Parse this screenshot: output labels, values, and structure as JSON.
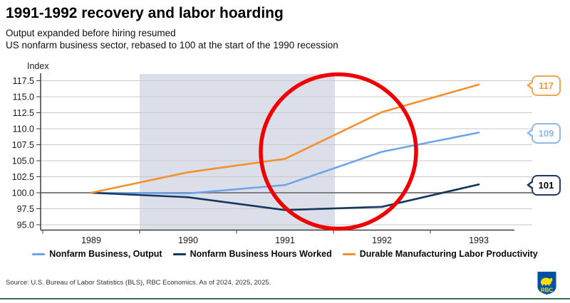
{
  "header": {
    "title": "1991-1992 recovery and labor hoarding",
    "subtitle_line1": "Output expanded before hiring resumed",
    "subtitle_line2": "US nonfarm business sector, rebased to 100 at the start of the 1990 recession"
  },
  "chart_data": {
    "type": "line",
    "title": "1991-1992 recovery and labor hoarding",
    "ylabel": "Index",
    "x": [
      1989,
      1990,
      1991,
      1992,
      1993
    ],
    "x_labels": [
      "1989",
      "1990",
      "1991",
      "1992",
      "1993"
    ],
    "ylim": [
      95,
      117.5
    ],
    "yticks": [
      "117.5",
      "115.0",
      "112.5",
      "110.0",
      "107.5",
      "105.0",
      "102.5",
      "100.0",
      "97.5",
      "95.0"
    ],
    "grid": true,
    "baseline_value": 100,
    "series": [
      {
        "name": "Nonfarm Business, Output",
        "color": "#6fa4e8",
        "values": [
          100,
          99.9,
          101.2,
          106.4,
          109.4
        ],
        "end_label": "109",
        "end_label_border_color": "#8fb9ee",
        "end_label_text_color": "#8fb9ee"
      },
      {
        "name": "Nonfarm Business Hours Worked",
        "color": "#17365d",
        "values": [
          100,
          99.3,
          97.3,
          97.8,
          101.3
        ],
        "end_label": "101",
        "end_label_border_color": "#1f3a63",
        "end_label_text_color": "#000000"
      },
      {
        "name": "Durable Manufacturing Labor Productivity",
        "color": "#f3912e",
        "values": [
          100,
          103.2,
          105.3,
          112.6,
          116.9
        ],
        "end_label": "117",
        "end_label_border_color": "#f5a54f",
        "end_label_text_color": "#f59b3d"
      }
    ],
    "recession_band": {
      "from_x": 1989.5,
      "to_x": 1991.5,
      "color": "#dcdfe9"
    },
    "annotation_circle": {
      "color": "#ee0000",
      "around": "1991-1992 recovery period"
    },
    "legend_position": "bottom",
    "colors": {
      "gridline": "#c8c8c8",
      "baseline": "#7f7f7f",
      "axis": "#3f3f3f"
    }
  },
  "footer": {
    "source": "Source: U.S. Bureau of Labor Statistics (BLS), RBC Economics. As of 2024, 2025, 2025.",
    "rbc_logo_text": "RBC",
    "rule_color": "#3e6b4f",
    "rbc_blue": "#0051a5",
    "rbc_yellow": "#fedf01"
  }
}
